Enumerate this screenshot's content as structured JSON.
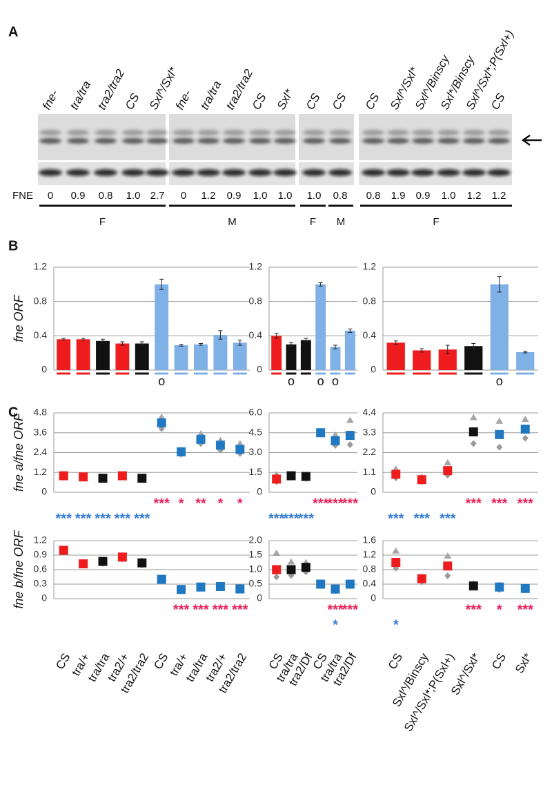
{
  "panel_labels": [
    "A",
    "B",
    "C"
  ],
  "blot": {
    "fne_label": "FNE",
    "lanes": [
      {
        "label": "fne-",
        "fne": "0"
      },
      {
        "label": "tra/tra",
        "fne": "0.9"
      },
      {
        "label": "tra2/tra2",
        "fne": "0.8"
      },
      {
        "label": "CS",
        "fne": "1.0"
      },
      {
        "label": "Sxl^/Sxl*",
        "fne": "2.7"
      },
      {
        "label": "fne-",
        "fne": "0"
      },
      {
        "label": "tra/tra",
        "fne": "1.2"
      },
      {
        "label": "tra2/tra2",
        "fne": "0.9"
      },
      {
        "label": "CS",
        "fne": "1.0"
      },
      {
        "label": "Sxl*",
        "fne": "1.0"
      },
      {
        "label": "CS",
        "fne": "1.0"
      },
      {
        "label": "CS",
        "fne": "0.8"
      },
      {
        "label": "CS",
        "fne": "0.8"
      },
      {
        "label": "Sxl^/Sxl*",
        "fne": "1.9"
      },
      {
        "label": "Sxl^/Binscy",
        "fne": "0.9"
      },
      {
        "label": "Sxl*/Binscy",
        "fne": "1.0"
      },
      {
        "label": "Sxl^/Sxl*;P(Sxl+)",
        "fne": "1.2"
      },
      {
        "label": "CS",
        "fne": "1.2"
      }
    ],
    "sex_groups": [
      "F",
      "M",
      "F",
      "M",
      "F"
    ]
  },
  "chart_data": [
    {
      "type": "bar",
      "ylabel": "fne ORF",
      "ylim": [
        0,
        1.2
      ],
      "yticks": [
        0,
        0.4,
        0.8,
        1.2
      ],
      "grid": true,
      "values": [
        0.36,
        0.36,
        0.34,
        0.31,
        0.31,
        1.0,
        0.29,
        0.3,
        0.41,
        0.32
      ],
      "errors": [
        0.01,
        0.01,
        0.02,
        0.02,
        0.02,
        0.06,
        0.01,
        0.01,
        0.05,
        0.03
      ],
      "colors": [
        "#ee1c1c",
        "#ee1c1c",
        "#111111",
        "#ee1c1c",
        "#111111",
        "#7fb0e6",
        "#7fb0e6",
        "#7fb0e6",
        "#7fb0e6",
        "#7fb0e6"
      ],
      "annotations": [
        {
          "index": 5,
          "text": "o"
        }
      ]
    },
    {
      "type": "bar",
      "ylim": [
        0,
        1.2
      ],
      "yticks": [
        0,
        0.4,
        0.8,
        1.2
      ],
      "grid": true,
      "values": [
        0.4,
        0.3,
        0.35,
        1.0,
        0.27,
        0.46
      ],
      "errors": [
        0.03,
        0.02,
        0.02,
        0.02,
        0.02,
        0.02
      ],
      "colors": [
        "#ee1c1c",
        "#111111",
        "#111111",
        "#7fb0e6",
        "#7fb0e6",
        "#7fb0e6"
      ],
      "annotations": [
        {
          "index": 1,
          "text": "o"
        },
        {
          "index": 3,
          "text": "o"
        },
        {
          "index": 4,
          "text": "o"
        }
      ]
    },
    {
      "type": "bar",
      "ylim": [
        0,
        1.2
      ],
      "yticks": [
        0,
        0.4,
        0.8,
        1.2
      ],
      "grid": true,
      "values": [
        0.32,
        0.23,
        0.24,
        0.28,
        1.0,
        0.21
      ],
      "errors": [
        0.02,
        0.02,
        0.05,
        0.03,
        0.09,
        0.01
      ],
      "colors": [
        "#ee1c1c",
        "#ee1c1c",
        "#ee1c1c",
        "#111111",
        "#7fb0e6",
        "#7fb0e6"
      ],
      "annotations": [
        {
          "index": 4,
          "text": "o"
        }
      ]
    },
    {
      "type": "dot",
      "ylabel": "fne a/fne ORF",
      "ylim": [
        0,
        4.8
      ],
      "yticks": [
        0,
        1.2,
        2.4,
        3.6,
        4.8
      ],
      "grid": true,
      "values": [
        1.0,
        0.93,
        0.85,
        1.0,
        0.85,
        4.2,
        2.45,
        3.2,
        2.85,
        2.6
      ],
      "replicates_a": [
        0.98,
        0.95,
        0.87,
        1.05,
        0.9,
        4.55,
        2.55,
        3.55,
        3.15,
        2.95
      ],
      "replicates_b": [
        0.95,
        0.9,
        0.8,
        0.95,
        0.82,
        3.85,
        2.3,
        2.95,
        2.55,
        2.35
      ],
      "colors": [
        "#ee1c1c",
        "#ee1c1c",
        "#111111",
        "#ee1c1c",
        "#111111",
        "#1f78c1",
        "#1f78c1",
        "#1f78c1",
        "#1f78c1",
        "#1f78c1"
      ],
      "stars": [
        [
          {
            "index": 5,
            "text": "***",
            "color": "#e8245a"
          },
          {
            "index": 6,
            "text": "*",
            "color": "#e8245a"
          },
          {
            "index": 7,
            "text": "**",
            "color": "#e8245a"
          },
          {
            "index": 8,
            "text": "*",
            "color": "#e8245a"
          },
          {
            "index": 9,
            "text": "*",
            "color": "#e8245a"
          }
        ],
        [
          {
            "index": 0,
            "text": "***",
            "color": "#3b7fd1"
          },
          {
            "index": 1,
            "text": "***",
            "color": "#3b7fd1"
          },
          {
            "index": 2,
            "text": "***",
            "color": "#3b7fd1"
          },
          {
            "index": 3,
            "text": "***",
            "color": "#3b7fd1"
          },
          {
            "index": 4,
            "text": "***",
            "color": "#3b7fd1"
          }
        ]
      ]
    },
    {
      "type": "dot",
      "ylim": [
        0,
        6
      ],
      "yticks": [
        0,
        1.5,
        {
          "value": 3,
          "label": "3.0"
        },
        4.5,
        {
          "value": 6,
          "label": "6.0"
        }
      ],
      "grid": true,
      "values": [
        1.0,
        1.25,
        1.2,
        4.5,
        3.9,
        4.3
      ],
      "replicates_a": [
        1.35,
        1.3,
        1.3,
        4.55,
        4.35,
        5.45
      ],
      "replicates_b": [
        0.8,
        1.15,
        1.05,
        4.4,
        3.55,
        3.6
      ],
      "colors": [
        "#ee1c1c",
        "#111111",
        "#111111",
        "#1f78c1",
        "#1f78c1",
        "#1f78c1"
      ],
      "stars": [
        [
          {
            "index": 3,
            "text": "***",
            "color": "#e8245a"
          },
          {
            "index": 4,
            "text": "***",
            "color": "#e8245a"
          },
          {
            "index": 5,
            "text": "***",
            "color": "#e8245a"
          }
        ],
        [
          {
            "index": 0,
            "text": "***",
            "color": "#3b7fd1"
          },
          {
            "index": 1,
            "text": "***",
            "color": "#3b7fd1"
          },
          {
            "index": 2,
            "text": "***",
            "color": "#3b7fd1"
          }
        ]
      ]
    },
    {
      "type": "dot",
      "ylim": [
        0,
        4.4
      ],
      "yticks": [
        0,
        1.1,
        2.2,
        3.3,
        4.4
      ],
      "grid": true,
      "values": [
        1.0,
        0.7,
        1.2,
        3.35,
        3.2,
        3.5
      ],
      "replicates_a": [
        1.3,
        0.85,
        1.65,
        4.15,
        3.95,
        4.05
      ],
      "replicates_b": [
        0.8,
        0.6,
        0.95,
        2.7,
        2.5,
        3.0
      ],
      "colors": [
        "#ee1c1c",
        "#ee1c1c",
        "#ee1c1c",
        "#111111",
        "#1f78c1",
        "#1f78c1"
      ],
      "stars": [
        [
          {
            "index": 3,
            "text": "***",
            "color": "#e8245a"
          },
          {
            "index": 4,
            "text": "***",
            "color": "#e8245a"
          },
          {
            "index": 5,
            "text": "***",
            "color": "#e8245a"
          }
        ],
        [
          {
            "index": 0,
            "text": "***",
            "color": "#3b7fd1"
          },
          {
            "index": 1,
            "text": "***",
            "color": "#3b7fd1"
          },
          {
            "index": 2,
            "text": "***",
            "color": "#3b7fd1"
          }
        ]
      ]
    },
    {
      "type": "dot",
      "ylabel": "fne b/fne ORF",
      "ylim": [
        0,
        1.2
      ],
      "yticks": [
        0,
        0.3,
        0.6,
        0.9,
        1.2
      ],
      "grid": true,
      "categories": [
        "CS",
        "tra/+",
        "tra/tra",
        "tra2/+",
        "tra2/tra2",
        "CS",
        "tra/+",
        "tra/tra",
        "tra2/+",
        "tra2/tra2"
      ],
      "values": [
        1.0,
        0.72,
        0.77,
        0.86,
        0.74,
        0.4,
        0.19,
        0.24,
        0.25,
        0.2
      ],
      "replicates_a": [
        1.02,
        0.74,
        0.8,
        0.89,
        0.78,
        0.41,
        0.2,
        0.26,
        0.28,
        0.23
      ],
      "replicates_b": [
        0.96,
        0.7,
        0.73,
        0.82,
        0.7,
        0.37,
        0.18,
        0.22,
        0.22,
        0.18
      ],
      "colors": [
        "#ee1c1c",
        "#ee1c1c",
        "#111111",
        "#ee1c1c",
        "#111111",
        "#1f78c1",
        "#1f78c1",
        "#1f78c1",
        "#1f78c1",
        "#1f78c1"
      ],
      "stars": [
        [
          {
            "index": 6,
            "text": "***",
            "color": "#e8245a"
          },
          {
            "index": 7,
            "text": "***",
            "color": "#e8245a"
          },
          {
            "index": 8,
            "text": "***",
            "color": "#e8245a"
          },
          {
            "index": 9,
            "text": "***",
            "color": "#e8245a"
          }
        ]
      ]
    },
    {
      "type": "dot",
      "ylim": [
        0,
        2
      ],
      "yticks": [
        0,
        0.5,
        {
          "value": 1,
          "label": "1.0"
        },
        1.5,
        {
          "value": 2,
          "label": "2.0"
        }
      ],
      "grid": true,
      "categories": [
        "CS",
        "tra/tra",
        "tra2/Df",
        "CS",
        "tra/tra",
        "tra2/Df"
      ],
      "values": [
        1.0,
        1.0,
        1.08,
        0.5,
        0.33,
        0.5
      ],
      "replicates_a": [
        1.57,
        1.27,
        1.25,
        0.52,
        0.4,
        0.55
      ],
      "replicates_b": [
        0.75,
        0.8,
        0.92,
        0.47,
        0.28,
        0.45
      ],
      "colors": [
        "#ee1c1c",
        "#111111",
        "#111111",
        "#1f78c1",
        "#1f78c1",
        "#1f78c1"
      ],
      "stars": [
        [
          {
            "index": 4,
            "text": "***",
            "color": "#e8245a"
          },
          {
            "index": 5,
            "text": "***",
            "color": "#e8245a"
          }
        ],
        [
          {
            "index": 4,
            "text": "*",
            "color": "#3b7fd1"
          }
        ]
      ]
    },
    {
      "type": "dot",
      "ylim": [
        0,
        1.6
      ],
      "yticks": [
        0,
        0.4,
        0.8,
        1.2,
        1.6
      ],
      "grid": true,
      "categories": [
        "CS",
        "Sxl^/Binscy",
        "Sxl^/Sxl*;P(Sxl+)",
        "Sxl^/Sxl*",
        "CS",
        "Sxl*"
      ],
      "values": [
        1.0,
        0.55,
        0.9,
        0.35,
        0.32,
        0.28
      ],
      "replicates_a": [
        1.32,
        0.6,
        1.18,
        0.42,
        0.38,
        0.33
      ],
      "replicates_b": [
        0.84,
        0.47,
        0.63,
        0.32,
        0.25,
        0.24
      ],
      "colors": [
        "#ee1c1c",
        "#ee1c1c",
        "#ee1c1c",
        "#111111",
        "#1f78c1",
        "#1f78c1"
      ],
      "stars": [
        [
          {
            "index": 3,
            "text": "***",
            "color": "#e8245a"
          },
          {
            "index": 4,
            "text": "*",
            "color": "#e8245a"
          },
          {
            "index": 5,
            "text": "***",
            "color": "#e8245a"
          }
        ],
        [
          {
            "index": 0,
            "text": "*",
            "color": "#3b7fd1"
          }
        ]
      ]
    }
  ]
}
